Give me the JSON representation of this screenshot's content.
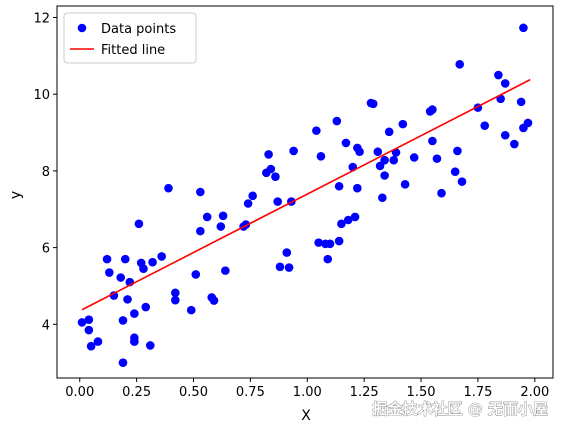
{
  "chart_data": {
    "type": "scatter",
    "title": "",
    "xlabel": "X",
    "ylabel": "y",
    "xlim": [
      -0.1,
      2.08
    ],
    "ylim": [
      2.6,
      12.3
    ],
    "x_ticks": [
      0.0,
      0.25,
      0.5,
      0.75,
      1.0,
      1.25,
      1.5,
      1.75,
      2.0
    ],
    "x_tick_labels": [
      "0.00",
      "0.25",
      "0.50",
      "0.75",
      "1.00",
      "1.25",
      "1.50",
      "1.75",
      "2.00"
    ],
    "y_ticks": [
      4,
      6,
      8,
      10,
      12
    ],
    "y_tick_labels": [
      "4",
      "6",
      "8",
      "10",
      "12"
    ],
    "grid": false,
    "legend_position": "top-left",
    "colors": {
      "points": "#0000ff",
      "line": "#ff0000",
      "axes": "#000000"
    },
    "series": [
      {
        "name": "Data points",
        "kind": "scatter",
        "points": [
          [
            0.01,
            4.05
          ],
          [
            0.04,
            3.85
          ],
          [
            0.04,
            4.12
          ],
          [
            0.05,
            3.43
          ],
          [
            0.08,
            3.55
          ],
          [
            0.12,
            5.7
          ],
          [
            0.13,
            5.35
          ],
          [
            0.15,
            4.75
          ],
          [
            0.18,
            5.22
          ],
          [
            0.19,
            3.0
          ],
          [
            0.19,
            4.1
          ],
          [
            0.2,
            5.7
          ],
          [
            0.21,
            4.65
          ],
          [
            0.22,
            5.1
          ],
          [
            0.24,
            3.55
          ],
          [
            0.24,
            3.65
          ],
          [
            0.24,
            4.28
          ],
          [
            0.26,
            6.62
          ],
          [
            0.27,
            5.6
          ],
          [
            0.28,
            5.45
          ],
          [
            0.29,
            4.45
          ],
          [
            0.31,
            3.45
          ],
          [
            0.32,
            5.62
          ],
          [
            0.36,
            5.77
          ],
          [
            0.39,
            7.55
          ],
          [
            0.42,
            4.82
          ],
          [
            0.42,
            4.63
          ],
          [
            0.49,
            4.37
          ],
          [
            0.51,
            5.3
          ],
          [
            0.53,
            7.45
          ],
          [
            0.53,
            6.43
          ],
          [
            0.56,
            6.8
          ],
          [
            0.58,
            4.7
          ],
          [
            0.59,
            4.62
          ],
          [
            0.62,
            6.55
          ],
          [
            0.63,
            6.83
          ],
          [
            0.64,
            5.4
          ],
          [
            0.72,
            6.55
          ],
          [
            0.73,
            6.6
          ],
          [
            0.74,
            7.15
          ],
          [
            0.76,
            7.35
          ],
          [
            0.82,
            7.95
          ],
          [
            0.83,
            8.43
          ],
          [
            0.84,
            8.05
          ],
          [
            0.86,
            7.85
          ],
          [
            0.87,
            7.2
          ],
          [
            0.88,
            5.5
          ],
          [
            0.91,
            5.87
          ],
          [
            0.92,
            5.48
          ],
          [
            0.93,
            7.2
          ],
          [
            0.94,
            8.52
          ],
          [
            1.04,
            9.05
          ],
          [
            1.05,
            6.13
          ],
          [
            1.06,
            8.38
          ],
          [
            1.08,
            6.1
          ],
          [
            1.09,
            5.7
          ],
          [
            1.1,
            6.1
          ],
          [
            1.13,
            9.3
          ],
          [
            1.14,
            6.17
          ],
          [
            1.14,
            7.6
          ],
          [
            1.15,
            6.62
          ],
          [
            1.17,
            8.73
          ],
          [
            1.18,
            6.72
          ],
          [
            1.2,
            8.1
          ],
          [
            1.21,
            6.8
          ],
          [
            1.22,
            8.6
          ],
          [
            1.22,
            7.55
          ],
          [
            1.23,
            8.5
          ],
          [
            1.28,
            9.77
          ],
          [
            1.29,
            9.75
          ],
          [
            1.31,
            8.5
          ],
          [
            1.32,
            8.13
          ],
          [
            1.33,
            7.3
          ],
          [
            1.34,
            8.28
          ],
          [
            1.34,
            7.88
          ],
          [
            1.36,
            9.02
          ],
          [
            1.38,
            8.28
          ],
          [
            1.39,
            8.48
          ],
          [
            1.42,
            9.22
          ],
          [
            1.43,
            7.65
          ],
          [
            1.47,
            8.35
          ],
          [
            1.54,
            9.55
          ],
          [
            1.55,
            9.6
          ],
          [
            1.55,
            8.78
          ],
          [
            1.57,
            8.32
          ],
          [
            1.59,
            7.42
          ],
          [
            1.65,
            7.98
          ],
          [
            1.66,
            8.52
          ],
          [
            1.67,
            10.78
          ],
          [
            1.68,
            7.72
          ],
          [
            1.75,
            9.65
          ],
          [
            1.78,
            9.18
          ],
          [
            1.84,
            10.5
          ],
          [
            1.85,
            9.88
          ],
          [
            1.87,
            10.28
          ],
          [
            1.87,
            8.93
          ],
          [
            1.91,
            8.7
          ],
          [
            1.94,
            9.8
          ],
          [
            1.95,
            11.73
          ],
          [
            1.95,
            9.12
          ],
          [
            1.97,
            9.25
          ]
        ]
      },
      {
        "name": "Fitted line",
        "kind": "line",
        "points": [
          [
            0.01,
            4.38
          ],
          [
            1.98,
            10.38
          ]
        ]
      }
    ]
  },
  "watermark": "掘金技术社区 @ 无而小屋"
}
